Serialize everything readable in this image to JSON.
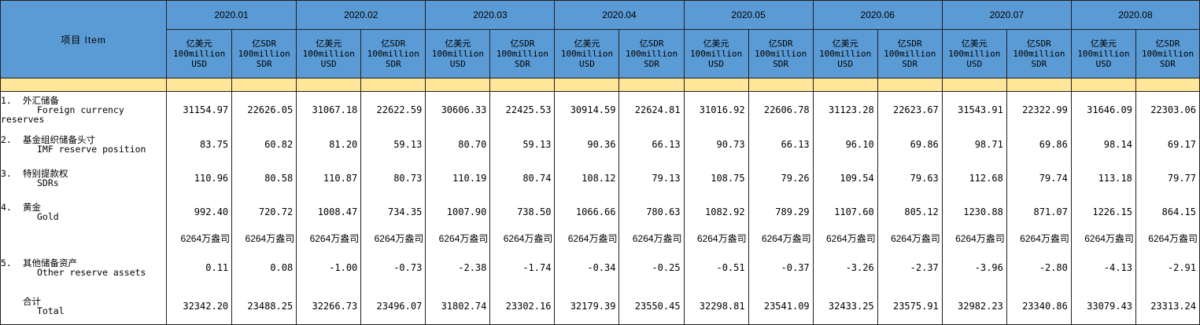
{
  "header": {
    "item_label": "项目 Item",
    "periods": [
      "2020.01",
      "2020.02",
      "2020.03",
      "2020.04",
      "2020.05",
      "2020.06",
      "2020.07",
      "2020.08"
    ],
    "units": {
      "usd": {
        "zh": "亿美元",
        "en1": "100million",
        "en2": "USD"
      },
      "sdr": {
        "zh": "亿SDR",
        "en1": "100million",
        "en2": "SDR"
      }
    }
  },
  "rows": [
    {
      "num": "1.",
      "zh": "外汇储备",
      "en": "Foreign currency",
      "en_extra": "reserves",
      "values": [
        "31154.97",
        "22626.05",
        "31067.18",
        "22622.59",
        "30606.33",
        "22425.53",
        "30914.59",
        "22624.81",
        "31016.92",
        "22606.78",
        "31123.28",
        "22623.67",
        "31543.91",
        "22322.99",
        "31646.09",
        "22303.06"
      ]
    },
    {
      "num": "2.",
      "zh": "基金组织储备头寸",
      "en": "IMF reserve position",
      "values": [
        "83.75",
        "60.82",
        "81.20",
        "59.13",
        "80.70",
        "59.13",
        "90.36",
        "66.13",
        "90.73",
        "66.13",
        "96.10",
        "69.86",
        "98.71",
        "69.86",
        "98.14",
        "69.17"
      ]
    },
    {
      "num": "3.",
      "zh": "特别提款权",
      "en": "SDRs",
      "values": [
        "110.96",
        "80.58",
        "110.87",
        "80.73",
        "110.19",
        "80.74",
        "108.12",
        "79.13",
        "108.75",
        "79.26",
        "109.54",
        "79.63",
        "112.68",
        "79.74",
        "113.18",
        "79.77"
      ]
    },
    {
      "num": "4.",
      "zh": "黄金",
      "en": "Gold",
      "values": [
        "992.40",
        "720.72",
        "1008.47",
        "734.35",
        "1007.90",
        "738.50",
        "1066.66",
        "780.63",
        "1082.92",
        "789.29",
        "1107.60",
        "805.12",
        "1230.88",
        "871.07",
        "1226.15",
        "864.15"
      ]
    },
    {
      "ounces": [
        "6264万盎司",
        "6264万盎司",
        "6264万盎司",
        "6264万盎司",
        "6264万盎司",
        "6264万盎司",
        "6264万盎司",
        "6264万盎司",
        "6264万盎司",
        "6264万盎司",
        "6264万盎司",
        "6264万盎司",
        "6264万盎司",
        "6264万盎司",
        "6264万盎司",
        "6264万盎司"
      ]
    },
    {
      "num": "5.",
      "zh": "其他储备资产",
      "en": "Other reserve assets",
      "values": [
        "0.11",
        "0.08",
        "-1.00",
        "-0.73",
        "-2.38",
        "-1.74",
        "-0.34",
        "-0.25",
        "-0.51",
        "-0.37",
        "-3.26",
        "-2.37",
        "-3.96",
        "-2.80",
        "-4.13",
        "-2.91"
      ]
    },
    {
      "num": "",
      "zh": "合计",
      "en": "Total",
      "values": [
        "32342.20",
        "23488.25",
        "32266.73",
        "23496.07",
        "31802.74",
        "23302.16",
        "32179.39",
        "23550.45",
        "32298.81",
        "23541.09",
        "32433.25",
        "23575.91",
        "32982.23",
        "23340.86",
        "33079.43",
        "23313.24"
      ]
    }
  ],
  "colors": {
    "header_bg": "#5b9bd5",
    "band_bg": "#ffe699",
    "grid": "#1f1f1f"
  }
}
